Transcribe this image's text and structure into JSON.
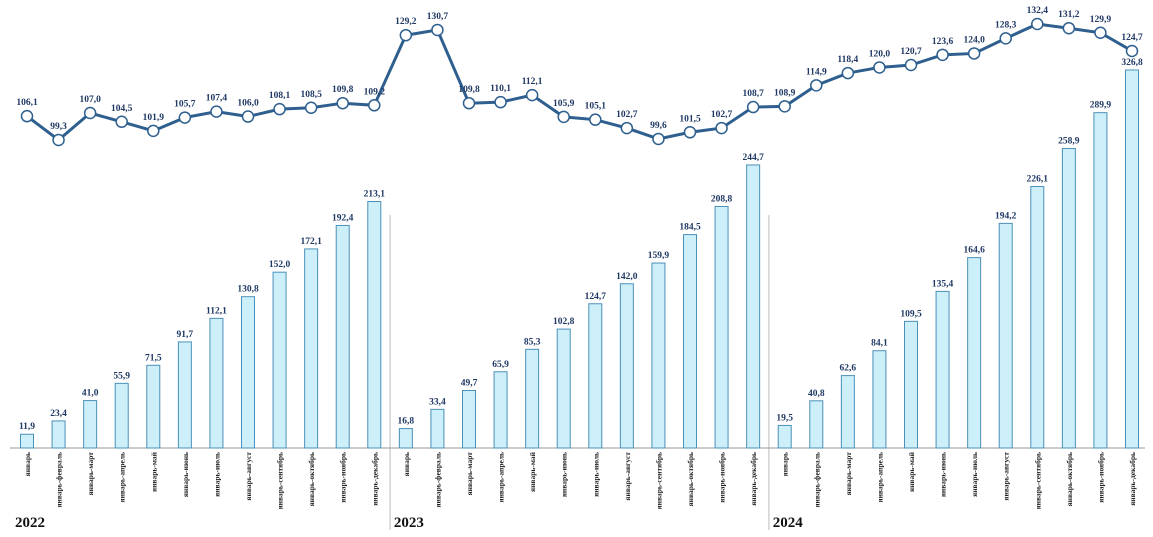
{
  "chart_data": {
    "type": "bar",
    "categories": [
      "январь",
      "январь-февраль",
      "январь-март",
      "январь-апрель",
      "январь-май",
      "январь-июнь",
      "январь-июль",
      "январь-август",
      "январь-сентябрь",
      "январь-октябрь",
      "январь-ноябрь",
      "январь-декабрь",
      "январь",
      "январь-февраль",
      "январь-март",
      "январь-апрель",
      "январь-май",
      "январь-июнь",
      "январь-июль",
      "январь-август",
      "январь-сентябрь",
      "январь-октябрь",
      "январь-ноябрь",
      "январь-декабрь",
      "январь",
      "январь-февраль",
      "январь-март",
      "январь-апрель",
      "январь-май",
      "январь-июнь",
      "январь-июль",
      "январь-август",
      "январь-сентябрь",
      "январь-октябрь",
      "январь-ноябрь",
      "январь-декабрь"
    ],
    "groups": [
      "2022",
      "2023",
      "2024"
    ],
    "series": [
      {
        "type": "bar",
        "color": "#cdeffa",
        "values": [
          11.9,
          23.4,
          41.0,
          55.9,
          71.5,
          91.7,
          112.1,
          130.8,
          152.0,
          172.1,
          192.4,
          213.1,
          16.8,
          33.4,
          49.7,
          65.9,
          85.3,
          102.8,
          124.7,
          142.0,
          159.9,
          184.5,
          208.8,
          244.7,
          19.5,
          40.8,
          62.6,
          84.1,
          109.5,
          135.4,
          164.6,
          194.2,
          226.1,
          258.9,
          289.9,
          326.8
        ],
        "value_labels": [
          "11,9",
          "23,4",
          "41,0",
          "55,9",
          "71,5",
          "91,7",
          "112,1",
          "130,8",
          "152,0",
          "172,1",
          "192,4",
          "213,1",
          "16,8",
          "33,4",
          "49,7",
          "65,9",
          "85,3",
          "102,8",
          "124,7",
          "142,0",
          "159,9",
          "184,5",
          "208,8",
          "244,7",
          "19,5",
          "40,8",
          "62,6",
          "84,1",
          "109,5",
          "135,4",
          "164,6",
          "194,2",
          "226,1",
          "258,9",
          "289,9",
          "326,8"
        ]
      },
      {
        "type": "line",
        "color": "#2e5f8e",
        "values": [
          106.1,
          99.3,
          107.0,
          104.5,
          101.9,
          105.7,
          107.4,
          106.0,
          108.1,
          108.5,
          109.8,
          109.2,
          129.2,
          130.7,
          109.8,
          110.1,
          112.1,
          105.9,
          105.1,
          102.7,
          99.6,
          101.5,
          102.7,
          108.7,
          108.9,
          114.9,
          118.4,
          120.0,
          120.7,
          123.6,
          124.0,
          128.3,
          132.4,
          131.2,
          129.9,
          124.7
        ],
        "value_labels": [
          "106,1",
          "99,3",
          "107,0",
          "104,5",
          "101,9",
          "105,7",
          "107,4",
          "106,0",
          "108,1",
          "108,5",
          "109,8",
          "109,2",
          "129,2",
          "130,7",
          "109,8",
          "110,1",
          "112,1",
          "105,9",
          "105,1",
          "102,7",
          "99,6",
          "101,5",
          "102,7",
          "108,7",
          "108,9",
          "114,9",
          "118,4",
          "120,0",
          "120,7",
          "123,6",
          "124,0",
          "128,3",
          "132,4",
          "131,2",
          "129,9",
          "124,7"
        ]
      }
    ]
  }
}
